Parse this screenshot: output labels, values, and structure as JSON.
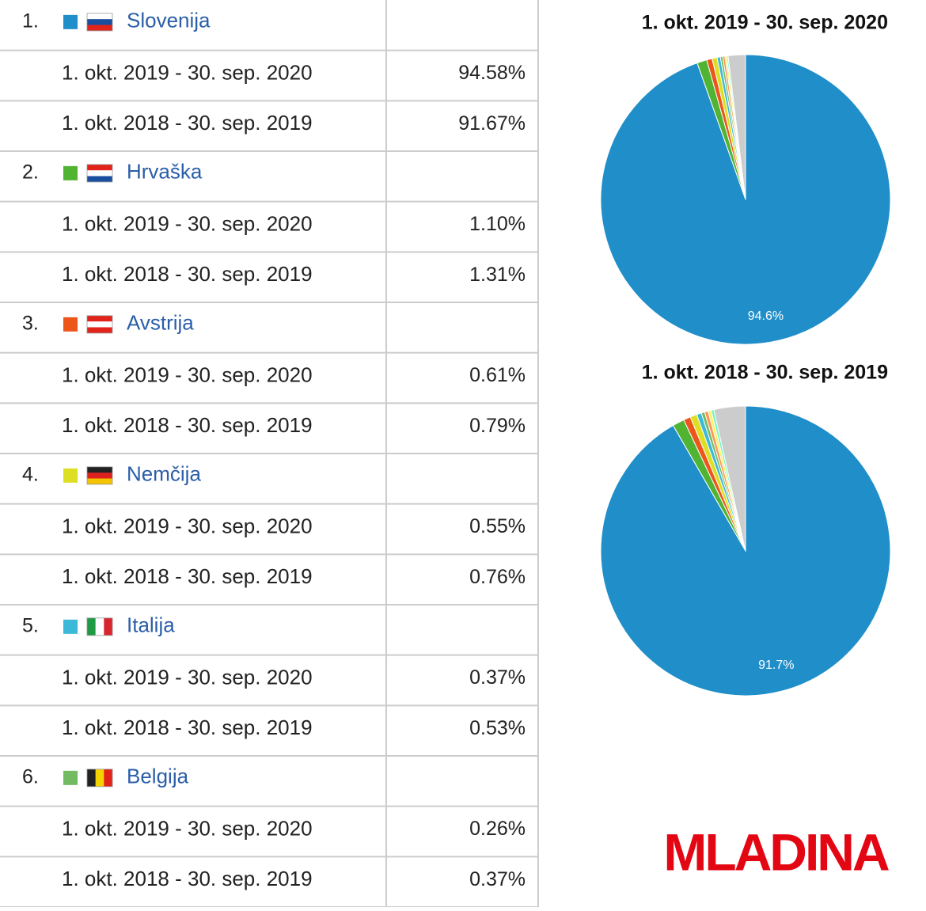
{
  "table": {
    "countries": [
      {
        "rank": "1.",
        "name": "Slovenija",
        "color": "#1f8ec9",
        "rows": [
          {
            "period": "1. okt. 2019 - 30. sep. 2020",
            "value": "94.58%"
          },
          {
            "period": "1. okt. 2018 - 30. sep. 2019",
            "value": "91.67%"
          }
        ]
      },
      {
        "rank": "2.",
        "name": "Hrvaška",
        "color": "#50b432",
        "rows": [
          {
            "period": "1. okt. 2019 - 30. sep. 2020",
            "value": "1.10%"
          },
          {
            "period": "1. okt. 2018 - 30. sep. 2019",
            "value": "1.31%"
          }
        ]
      },
      {
        "rank": "3.",
        "name": "Avstrija",
        "color": "#ed561b",
        "rows": [
          {
            "period": "1. okt. 2019 - 30. sep. 2020",
            "value": "0.61%"
          },
          {
            "period": "1. okt. 2018 - 30. sep. 2019",
            "value": "0.79%"
          }
        ]
      },
      {
        "rank": "4.",
        "name": "Nemčija",
        "color": "#dddf22",
        "rows": [
          {
            "period": "1. okt. 2019 - 30. sep. 2020",
            "value": "0.55%"
          },
          {
            "period": "1. okt. 2018 - 30. sep. 2019",
            "value": "0.76%"
          }
        ]
      },
      {
        "rank": "5.",
        "name": "Italija",
        "color": "#3cb9d8",
        "rows": [
          {
            "period": "1. okt. 2019 - 30. sep. 2020",
            "value": "0.37%"
          },
          {
            "period": "1. okt. 2018 - 30. sep. 2019",
            "value": "0.53%"
          }
        ]
      },
      {
        "rank": "6.",
        "name": "Belgija",
        "color": "#72bb62",
        "rows": [
          {
            "period": "1. okt. 2019 - 30. sep. 2020",
            "value": "0.26%"
          },
          {
            "period": "1. okt. 2018 - 30. sep. 2019",
            "value": "0.37%"
          }
        ]
      }
    ]
  },
  "chart_data": [
    {
      "type": "pie",
      "title": "1. okt. 2019 - 30. sep. 2020",
      "values": [
        94.58,
        1.1,
        0.61,
        0.55,
        0.37,
        0.26,
        0.25,
        0.2,
        0.15,
        1.93
      ],
      "value_labels": [
        "94.6%",
        null,
        null,
        null,
        null,
        null,
        null,
        null,
        null,
        null
      ],
      "colors": [
        "#1f8ec9",
        "#50b432",
        "#ed561b",
        "#dddf22",
        "#3cb9d8",
        "#72bb62",
        "#ff9655",
        "#fff263",
        "#6af9c4",
        "#cccccc"
      ]
    },
    {
      "type": "pie",
      "title": "1. okt. 2018 - 30. sep. 2019",
      "values": [
        91.67,
        1.31,
        0.79,
        0.76,
        0.53,
        0.37,
        0.4,
        0.35,
        0.3,
        3.52
      ],
      "value_labels": [
        "91.7%",
        null,
        null,
        null,
        null,
        null,
        null,
        null,
        null,
        null
      ],
      "colors": [
        "#1f8ec9",
        "#50b432",
        "#ed561b",
        "#dddf22",
        "#3cb9d8",
        "#72bb62",
        "#ff9655",
        "#fff263",
        "#6af9c4",
        "#cccccc"
      ]
    }
  ],
  "logo": "MLADINA"
}
